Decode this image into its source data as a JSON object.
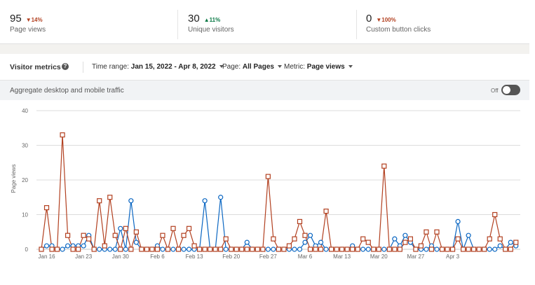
{
  "stats": [
    {
      "value": "95",
      "change": "14%",
      "direction": "down",
      "label": "Page views"
    },
    {
      "value": "30",
      "change": "11%",
      "direction": "up",
      "label": "Unique visitors"
    },
    {
      "value": "0",
      "change": "100%",
      "direction": "down",
      "label": "Custom button clicks"
    }
  ],
  "controls": {
    "title": "Visitor metrics",
    "time_range_label": "Time range:",
    "time_range_value": "Jan 15, 2022 - Apr 8, 2022",
    "page_label": "Page:",
    "page_value": "All Pages",
    "metric_label": "Metric:",
    "metric_value": "Page views"
  },
  "aggregate": {
    "label": "Aggregate desktop and mobile traffic",
    "toggle_text": "Off",
    "toggle_on": false
  },
  "colors": {
    "series_red": "#b24020",
    "series_blue": "#0a66c2",
    "change_down": "#b24020",
    "change_up": "#057642",
    "grid": "#d9d9d9"
  },
  "icons": {
    "help": "question-circle-icon",
    "caret": "caret-down-icon"
  },
  "chart_data": {
    "type": "line",
    "start_date": "2022-01-15",
    "ylabel": "Page views",
    "ylim": [
      0,
      40
    ],
    "yticks": [
      0,
      10,
      20,
      30,
      40
    ],
    "xtick_labels": [
      "Jan 16",
      "Jan 23",
      "Jan 30",
      "Feb 6",
      "Feb 13",
      "Feb 20",
      "Feb 27",
      "Mar 6",
      "Mar 13",
      "Mar 20",
      "Mar 27",
      "Apr 3"
    ],
    "grid": true,
    "legend": "none",
    "series": [
      {
        "marker": "square",
        "color": "#b24020",
        "values": [
          0,
          12,
          0,
          0,
          33,
          4,
          0,
          0,
          4,
          3,
          0,
          14,
          1,
          15,
          4,
          0,
          6,
          0,
          5,
          0,
          0,
          0,
          0,
          4,
          0,
          6,
          0,
          4,
          6,
          1,
          0,
          0,
          0,
          0,
          0,
          3,
          0,
          0,
          0,
          0,
          0,
          0,
          0,
          21,
          3,
          0,
          0,
          1,
          3,
          8,
          4,
          0,
          0,
          0,
          11,
          0,
          0,
          0,
          0,
          0,
          0,
          3,
          2,
          0,
          0,
          24,
          0,
          0,
          0,
          2,
          3,
          0,
          1,
          5,
          0,
          5,
          0,
          0,
          0,
          3,
          0,
          0,
          0,
          0,
          0,
          3,
          10,
          3,
          0,
          0,
          2
        ]
      },
      {
        "marker": "circle",
        "color": "#0a66c2",
        "values": [
          0,
          1,
          1,
          0,
          0,
          1,
          1,
          1,
          1,
          4,
          0,
          0,
          0,
          0,
          0,
          6,
          0,
          14,
          2,
          0,
          0,
          0,
          1,
          0,
          0,
          0,
          0,
          0,
          0,
          0,
          0,
          14,
          0,
          0,
          15,
          0,
          0,
          0,
          0,
          2,
          0,
          0,
          0,
          0,
          0,
          0,
          0,
          0,
          0,
          0,
          2,
          4,
          1,
          2,
          0,
          0,
          0,
          0,
          0,
          1,
          0,
          0,
          0,
          0,
          0,
          0,
          0,
          3,
          1,
          4,
          2,
          0,
          0,
          0,
          1,
          0,
          0,
          0,
          0,
          8,
          0,
          4,
          0,
          0,
          0,
          0,
          0,
          1,
          0,
          2,
          1
        ]
      }
    ]
  }
}
